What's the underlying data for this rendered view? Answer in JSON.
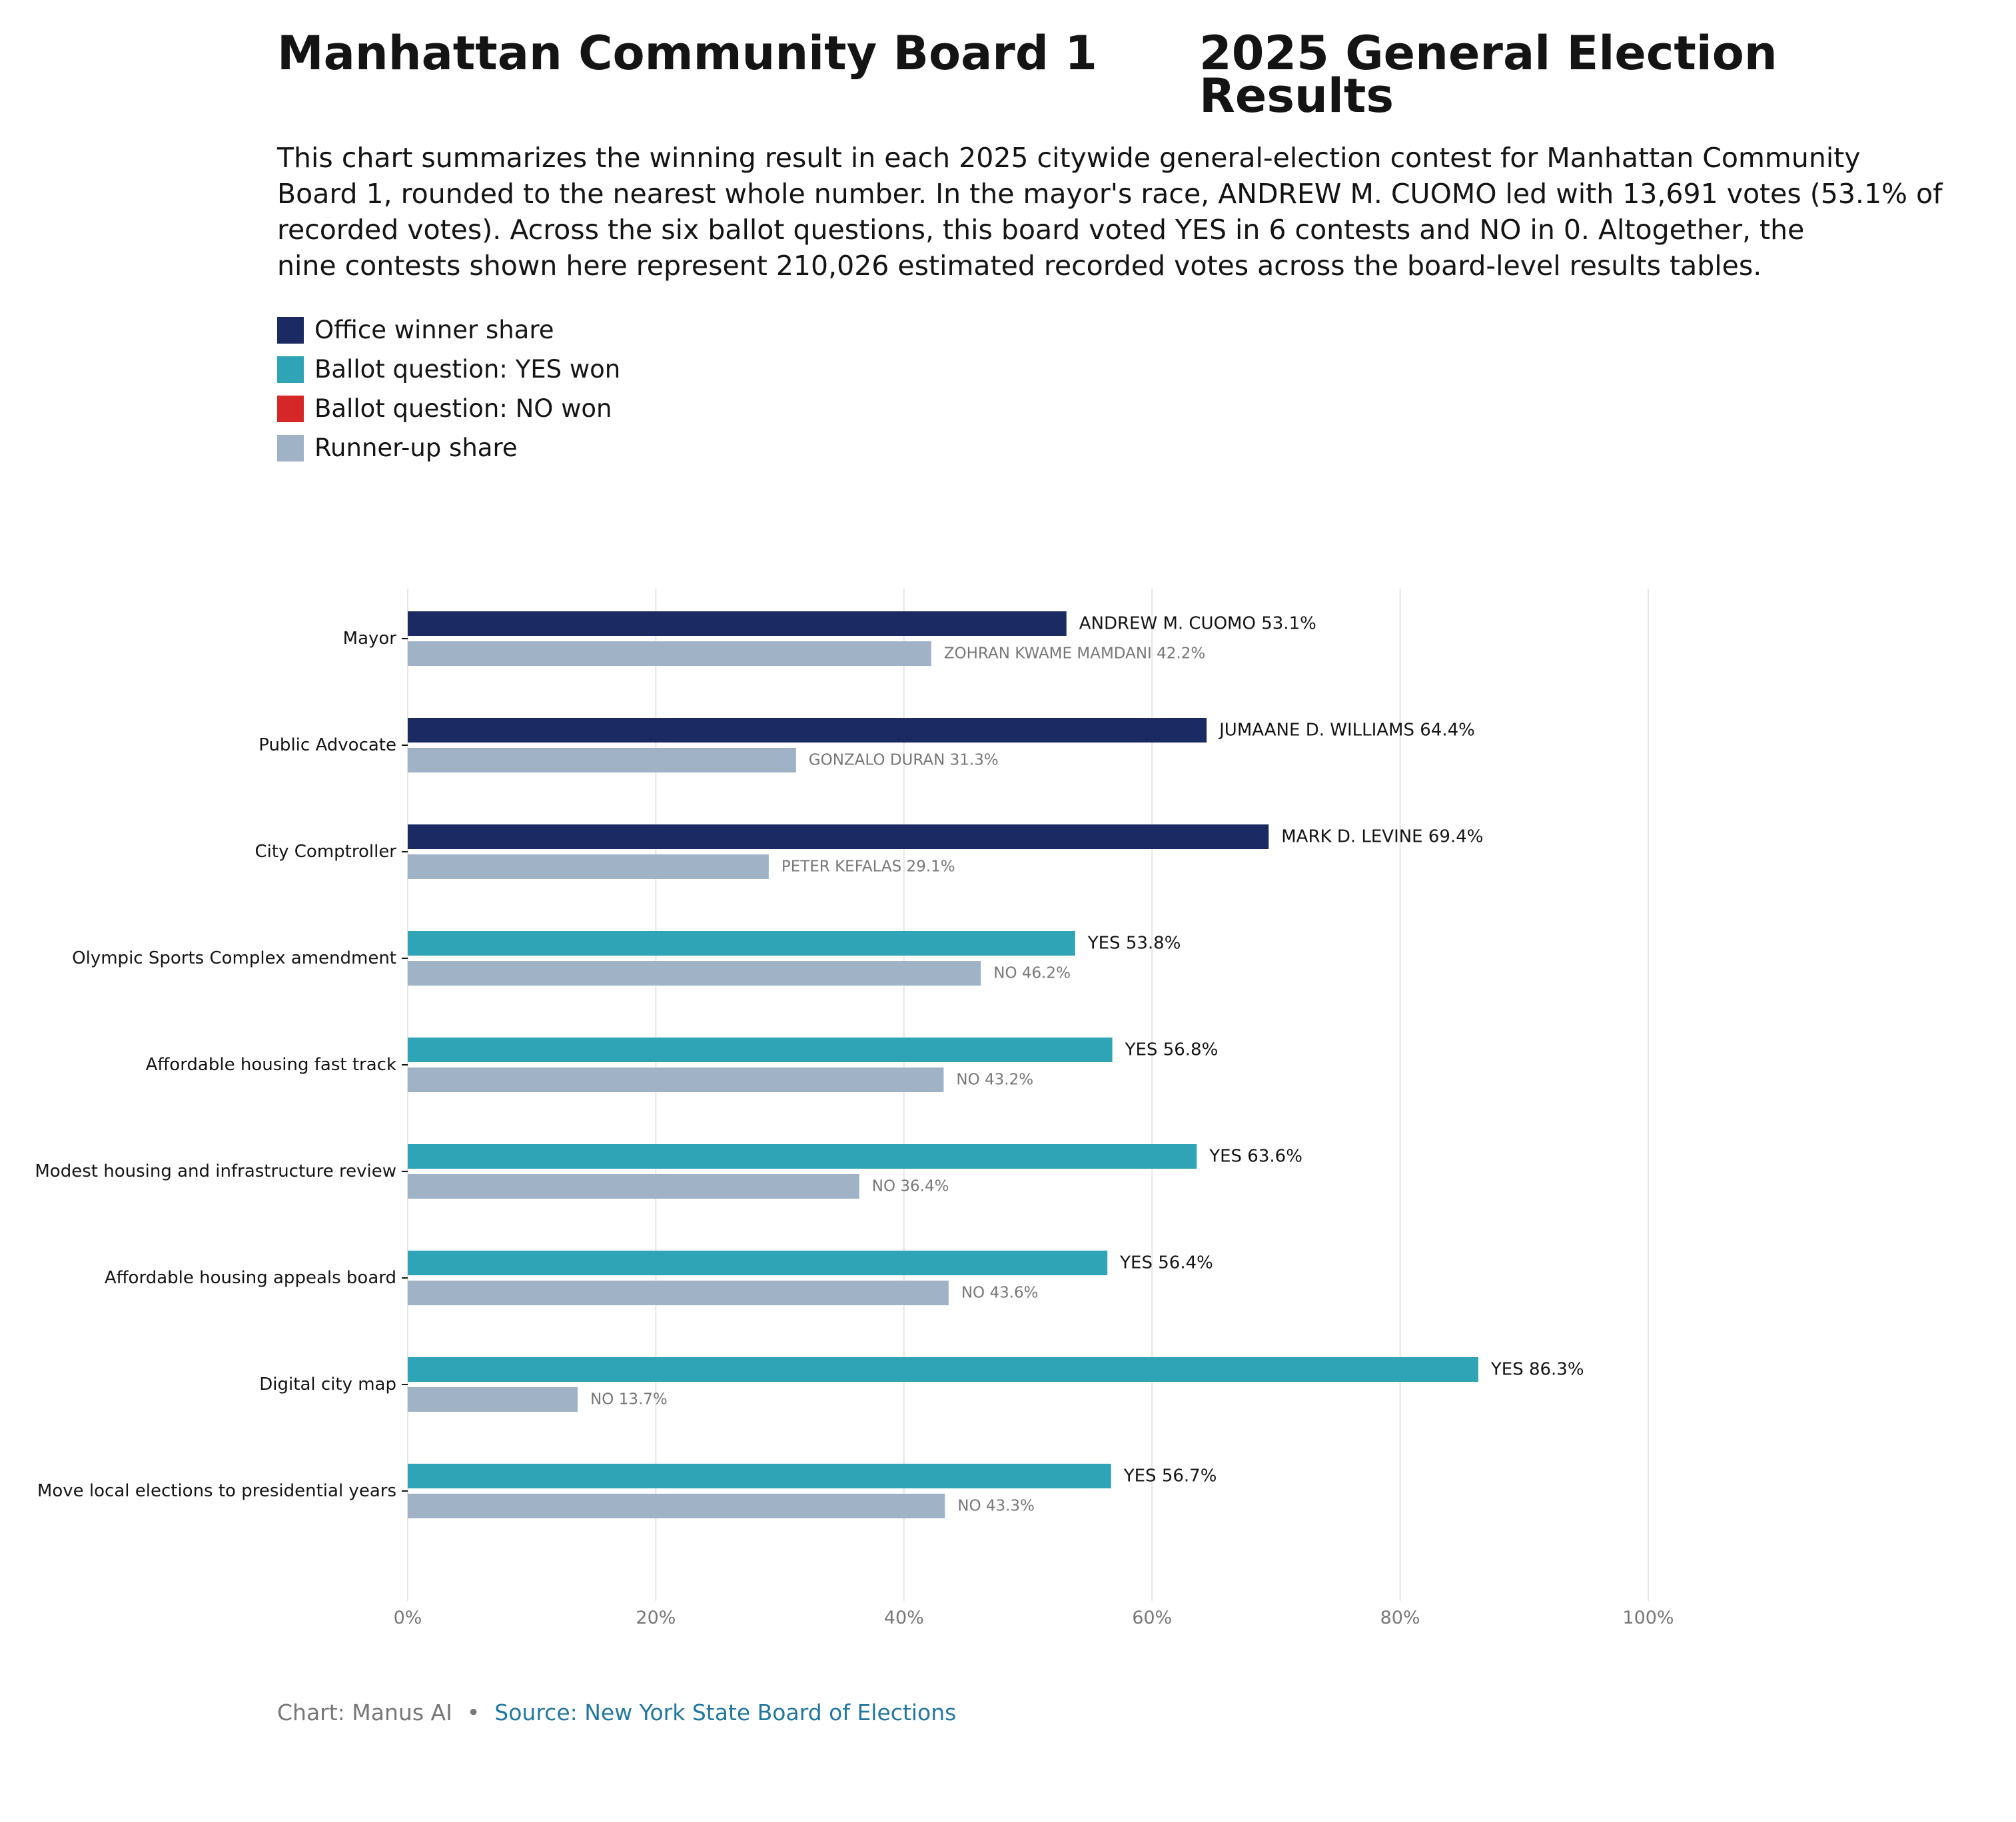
{
  "colors": {
    "office_winner": "#1b2a63",
    "yes_won": "#2ea4b6",
    "no_won": "#d62728",
    "runner_up": "#a0b2c6",
    "gridline": "#e6e6e6",
    "axis_text": "#777777",
    "winner_label": "#141414",
    "runner_label": "#777777",
    "source_link": "#2277a0"
  },
  "header": {
    "title_left": "Manhattan Community Board 1",
    "title_right": "2025 General Election Results",
    "subtitle": "This chart summarizes the winning result in each 2025 citywide general-election contest for Manhattan Community\nBoard 1, rounded to the nearest whole number. In the mayor's race, ANDREW M. CUOMO led with 13,691 votes (53.1% of\nrecorded votes). Across the six ballot questions, this board voted YES in 6 contests and NO in 0. Altogether, the\nnine contests shown here represent 210,026 estimated recorded votes across the board-level results tables."
  },
  "legend": [
    {
      "label": "Office winner share",
      "color": "#1b2a63"
    },
    {
      "label": "Ballot question: YES won",
      "color": "#2ea4b6"
    },
    {
      "label": "Ballot question: NO won",
      "color": "#d62728"
    },
    {
      "label": "Runner-up share",
      "color": "#a0b2c6"
    }
  ],
  "chart_data": {
    "type": "bar",
    "orientation": "horizontal",
    "xlim": [
      0,
      100
    ],
    "x_ticks": [
      0,
      20,
      40,
      60,
      80,
      100
    ],
    "x_tick_labels": [
      "0%",
      "20%",
      "40%",
      "60%",
      "80%",
      "100%"
    ],
    "grid": "vertical",
    "legend_position": "top-left",
    "categories": [
      "Mayor",
      "Public Advocate",
      "City Comptroller",
      "Olympic Sports Complex amendment",
      "Affordable housing fast track",
      "Modest housing and infrastructure review",
      "Affordable housing appeals board",
      "Digital city map",
      "Move local elections to presidential years"
    ],
    "series": [
      {
        "name": "Winner",
        "values": [
          53.1,
          64.4,
          69.4,
          53.8,
          56.8,
          63.6,
          56.4,
          86.3,
          56.7
        ],
        "kinds": [
          "office",
          "office",
          "office",
          "yes",
          "yes",
          "yes",
          "yes",
          "yes",
          "yes"
        ],
        "labels": [
          "ANDREW M. CUOMO 53.1%",
          "JUMAANE D. WILLIAMS 64.4%",
          "MARK D. LEVINE 69.4%",
          "YES 53.8%",
          "YES 56.8%",
          "YES 63.6%",
          "YES 56.4%",
          "YES 86.3%",
          "YES 56.7%"
        ]
      },
      {
        "name": "Runner-up",
        "values": [
          42.2,
          31.3,
          29.1,
          46.2,
          43.2,
          36.4,
          43.6,
          13.7,
          43.3
        ],
        "labels": [
          "ZOHRAN KWAME MAMDANI 42.2%",
          "GONZALO DURAN 31.3%",
          "PETER KEFALAS 29.1%",
          "NO 46.2%",
          "NO 43.2%",
          "NO 36.4%",
          "NO 43.6%",
          "NO 13.7%",
          "NO 43.3%"
        ]
      }
    ]
  },
  "footer": {
    "credit": "Chart: Manus AI",
    "separator": "•",
    "source": "Source: New York State Board of Elections"
  }
}
